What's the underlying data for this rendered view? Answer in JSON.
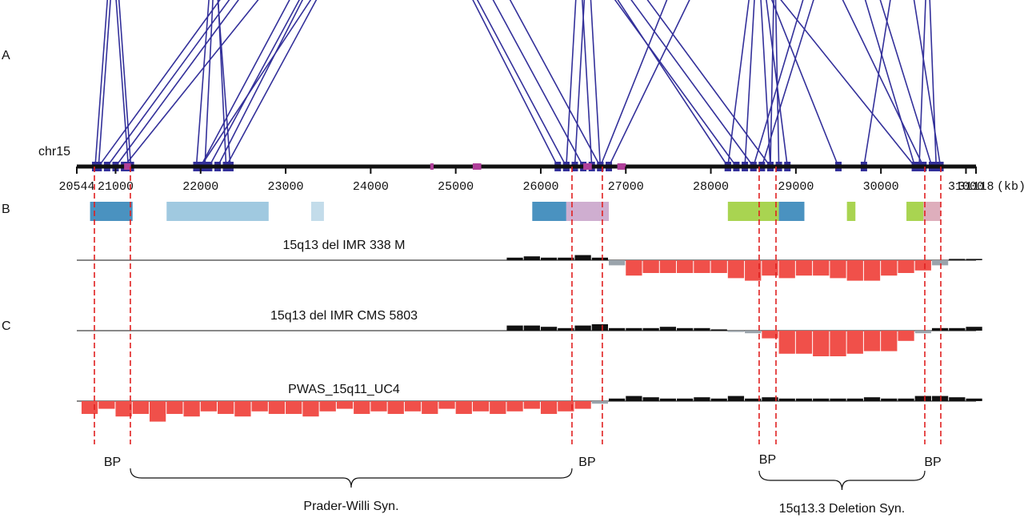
{
  "chart_data": {
    "type": "genome",
    "panel_labels": [
      "A",
      "B",
      "C"
    ],
    "chromosome": "chr15",
    "x_unit": "(kb)",
    "xlim": [
      20544,
      31118
    ],
    "xticks": [
      20544,
      21000,
      22000,
      23000,
      24000,
      25000,
      26000,
      27000,
      28000,
      29000,
      30000,
      31000,
      31118
    ],
    "link_color": "#33309a",
    "links": [
      [
        20760,
        21150
      ],
      [
        20800,
        21180
      ],
      [
        21950,
        22350
      ],
      [
        22050,
        22300
      ],
      [
        20800,
        28300
      ],
      [
        20900,
        28500
      ],
      [
        21000,
        28700
      ],
      [
        21100,
        30400
      ],
      [
        22000,
        26300
      ],
      [
        22100,
        26500
      ],
      [
        22200,
        26200
      ],
      [
        22000,
        28200
      ],
      [
        22300,
        26700
      ],
      [
        26300,
        26600
      ],
      [
        26400,
        26700
      ],
      [
        26700,
        29500
      ],
      [
        26800,
        30500
      ],
      [
        28200,
        28900
      ],
      [
        28400,
        28700
      ],
      [
        28500,
        30400
      ],
      [
        28600,
        30600
      ],
      [
        29800,
        30700
      ],
      [
        30450,
        30650
      ],
      [
        28700,
        28800
      ]
    ],
    "marker_color": "#b0409a",
    "markers": [
      [
        21100,
        21180
      ],
      [
        24700,
        24740
      ],
      [
        25200,
        25300
      ],
      [
        26500,
        26600
      ],
      [
        26900,
        27000
      ]
    ],
    "duplications": [
      {
        "start": 20700,
        "end": 21200,
        "color": "#2a7fb5"
      },
      {
        "start": 21600,
        "end": 22800,
        "color": "#8fc0da"
      },
      {
        "start": 23300,
        "end": 23450,
        "color": "#b8d6e6"
      },
      {
        "start": 25900,
        "end": 26300,
        "color": "#2a7fb5"
      },
      {
        "start": 26300,
        "end": 26800,
        "color": "#c7a0c8"
      },
      {
        "start": 28200,
        "end": 28800,
        "color": "#9acd32"
      },
      {
        "start": 28800,
        "end": 29100,
        "color": "#2a7fb5"
      },
      {
        "start": 29600,
        "end": 29700,
        "color": "#9acd32"
      },
      {
        "start": 30300,
        "end": 30500,
        "color": "#9acd32"
      },
      {
        "start": 30500,
        "end": 30700,
        "color": "#d8a0b0"
      }
    ],
    "breakpoint_color": "#e02020",
    "breakpoints": [
      20751,
      21174,
      26367,
      26724,
      28568,
      28766,
      30516,
      30704
    ],
    "breakpoint_labels": [
      "BP",
      "BP",
      "BP",
      "BP"
    ],
    "regions": [
      {
        "label": "Prader-Willi Syn.",
        "start": 21174,
        "end": 26367
      },
      {
        "label": "15q13.3  Deletion Syn.",
        "start": 28568,
        "end": 30516
      }
    ],
    "positive_color": "#111111",
    "negative_color": "#9aa3ab",
    "deletion_color": "#f0504a",
    "track_x": [
      20600,
      20800,
      21000,
      21200,
      21400,
      21600,
      21800,
      22000,
      22200,
      22400,
      22600,
      22800,
      23000,
      23200,
      23400,
      23600,
      23800,
      24000,
      24200,
      24400,
      24600,
      24800,
      25000,
      25200,
      25400,
      25600,
      25800,
      26000,
      26200,
      26400,
      26600,
      26800,
      27000,
      27200,
      27400,
      27600,
      27800,
      28000,
      28200,
      28400,
      28600,
      28800,
      29000,
      29200,
      29400,
      29600,
      29800,
      30000,
      30200,
      30400,
      30600,
      30800,
      31000
    ],
    "tracks": [
      {
        "name": "15q13 del IMR 338 M",
        "values": [
          null,
          null,
          null,
          null,
          null,
          null,
          null,
          null,
          null,
          null,
          null,
          null,
          null,
          null,
          null,
          null,
          null,
          null,
          null,
          null,
          null,
          null,
          null,
          null,
          null,
          0.1,
          0.15,
          0.1,
          0.1,
          0.2,
          0.1,
          -0.2,
          -0.6,
          -0.5,
          -0.5,
          -0.5,
          -0.5,
          -0.5,
          -0.7,
          -0.8,
          -0.6,
          -0.7,
          -0.6,
          -0.6,
          -0.7,
          -0.8,
          -0.8,
          -0.6,
          -0.5,
          -0.4,
          -0.2,
          0.05,
          0.05
        ]
      },
      {
        "name": "15q13 del IMR CMS 5803",
        "values": [
          null,
          null,
          null,
          null,
          null,
          null,
          null,
          null,
          null,
          null,
          null,
          null,
          null,
          null,
          null,
          null,
          null,
          null,
          null,
          null,
          null,
          null,
          null,
          null,
          null,
          0.2,
          0.2,
          0.15,
          0.1,
          0.2,
          0.25,
          0.1,
          0.1,
          0.1,
          0.15,
          0.1,
          0.1,
          0.05,
          -0.05,
          -0.1,
          -0.3,
          -0.9,
          -0.9,
          -1,
          -1,
          -0.9,
          -0.8,
          -0.8,
          -0.4,
          -0.1,
          0.1,
          0.1,
          0.15
        ]
      },
      {
        "name": "PWAS_15q11_UC4",
        "values": [
          -0.5,
          -0.3,
          -0.6,
          -0.5,
          -0.8,
          -0.5,
          -0.6,
          -0.4,
          -0.5,
          -0.6,
          -0.4,
          -0.5,
          -0.5,
          -0.6,
          -0.4,
          -0.3,
          -0.5,
          -0.4,
          -0.5,
          -0.4,
          -0.5,
          -0.3,
          -0.5,
          -0.4,
          -0.5,
          -0.4,
          -0.3,
          -0.5,
          -0.4,
          -0.3,
          -0.1,
          0.1,
          0.2,
          0.15,
          0.1,
          0.1,
          0.15,
          0.1,
          0.2,
          0.1,
          0.15,
          0.1,
          0.1,
          0.1,
          0.1,
          0.1,
          0.15,
          0.1,
          0.1,
          0.2,
          0.2,
          0.15,
          0.1
        ]
      }
    ]
  }
}
